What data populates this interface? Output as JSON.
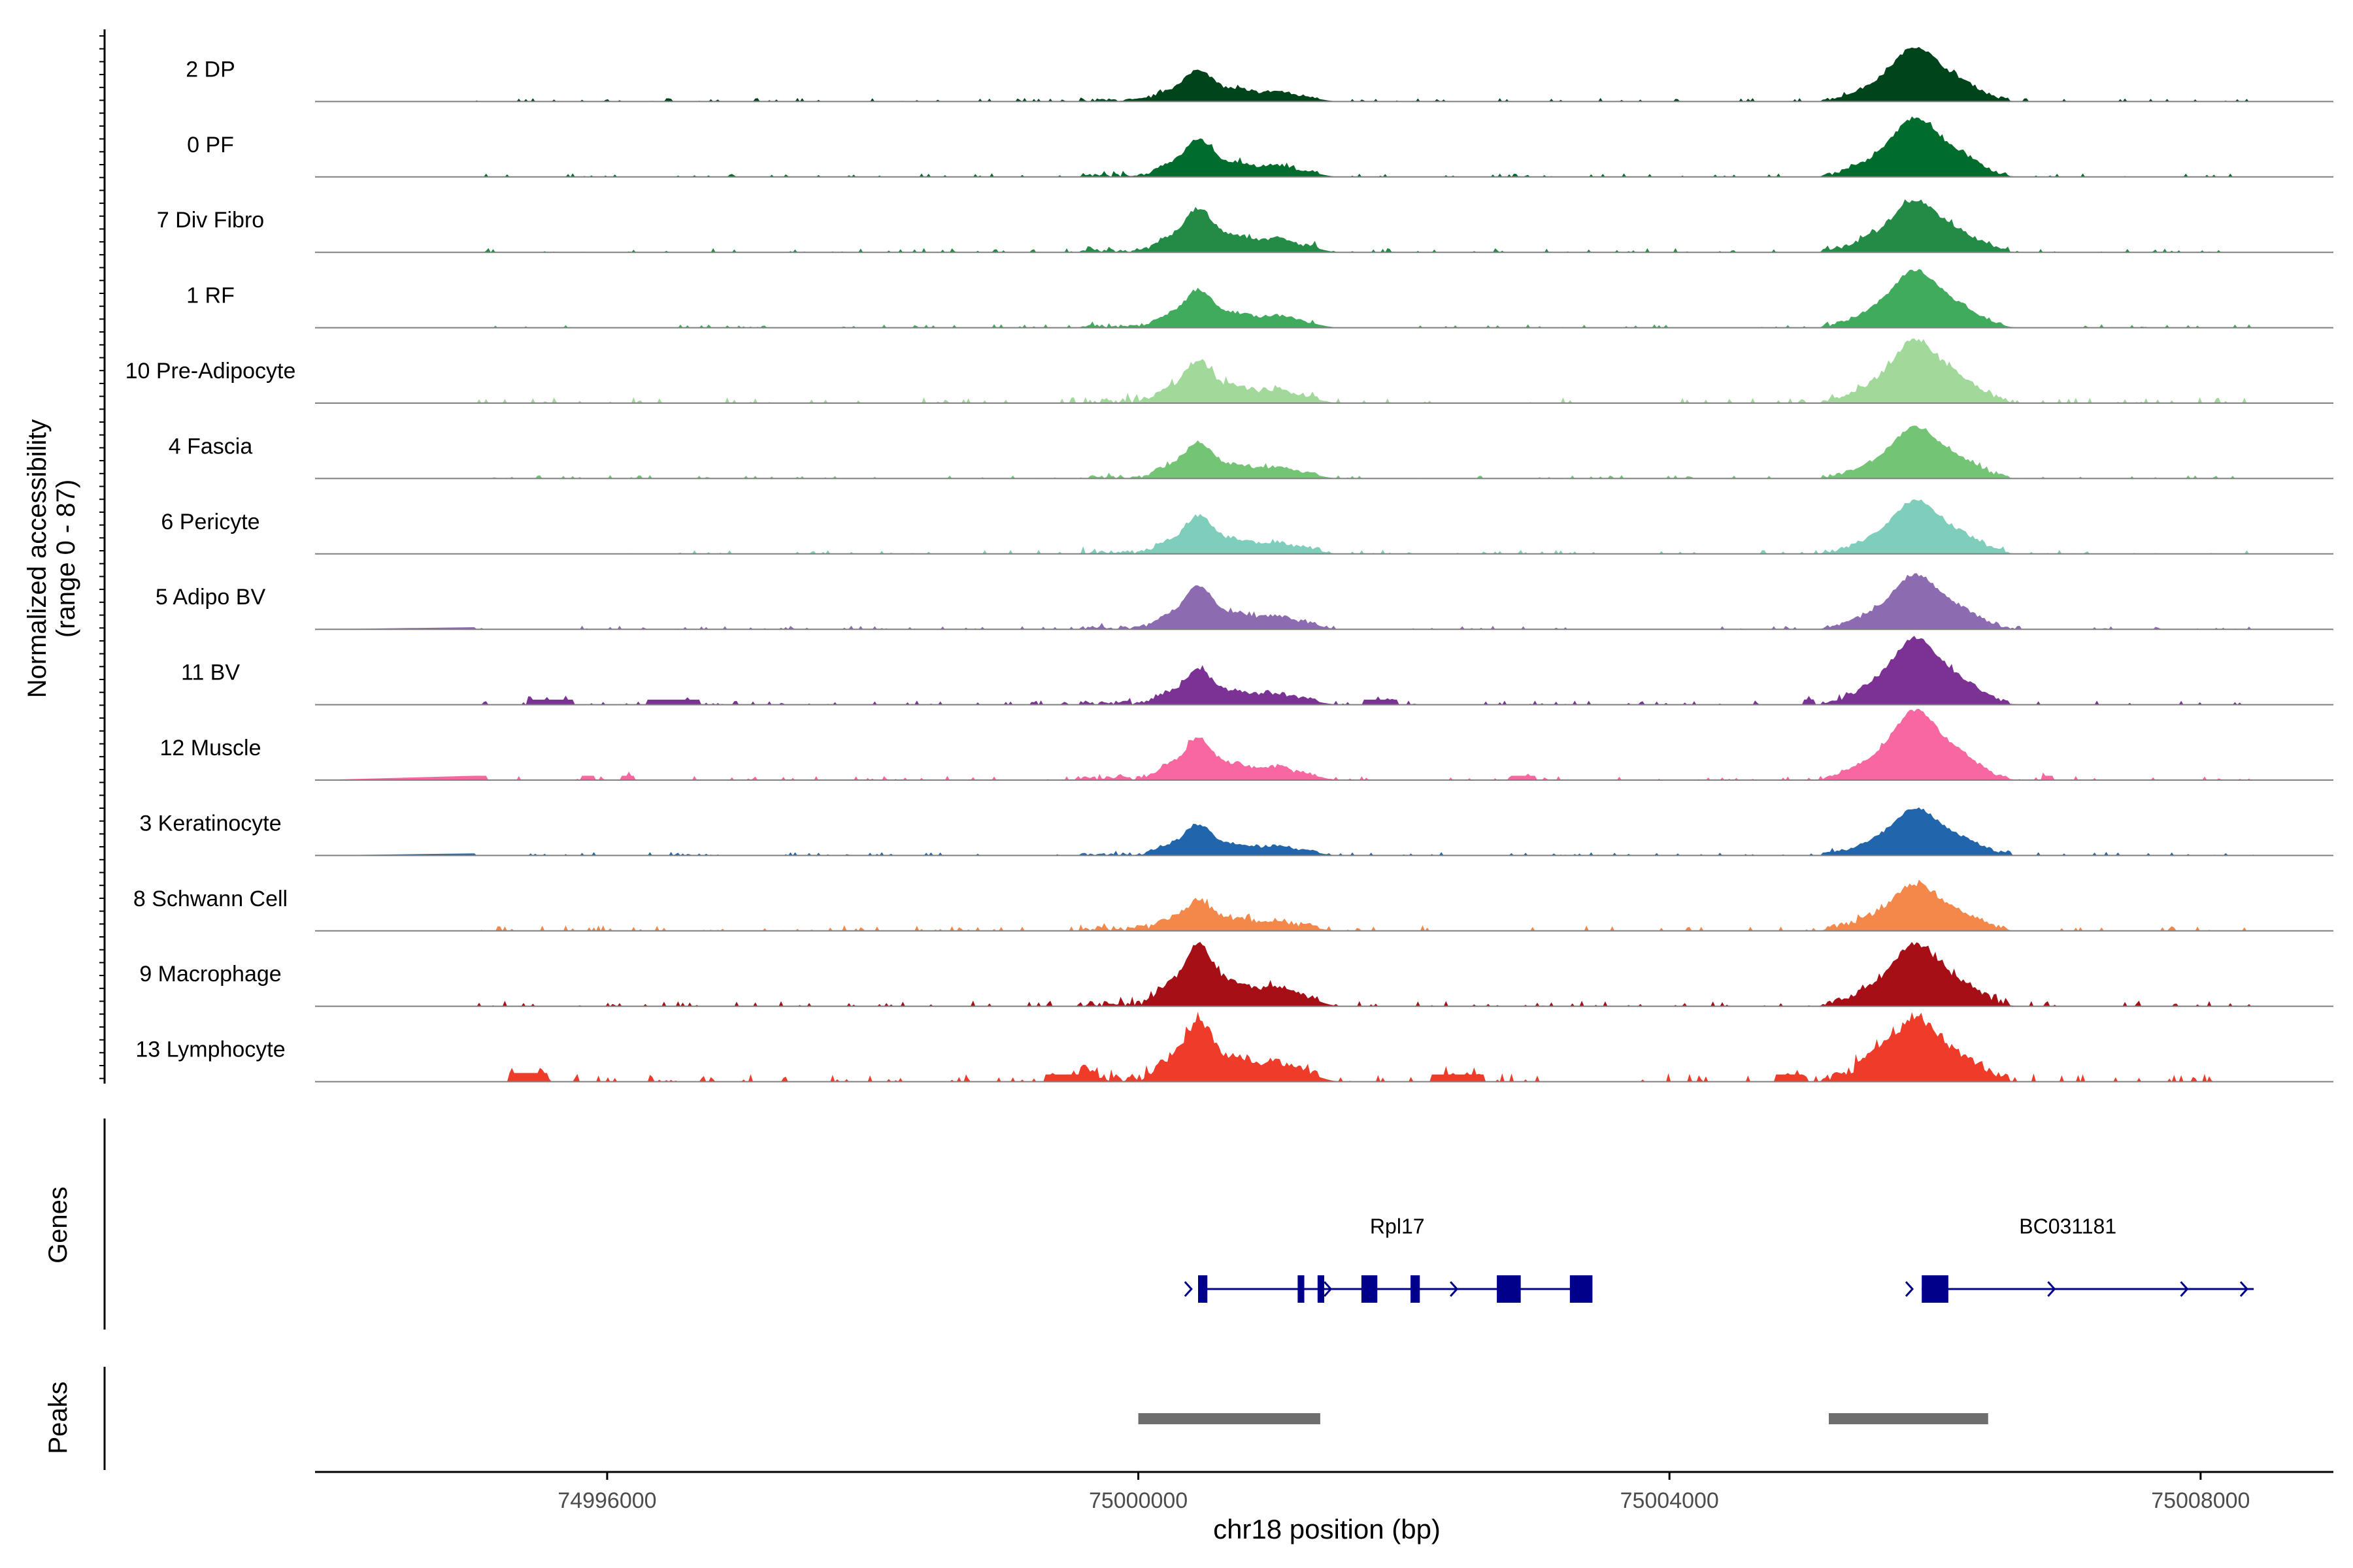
{
  "chart_data": {
    "type": "area",
    "chromosome": "chr18",
    "xlabel": "chr18 position (bp)",
    "ylabel": "Normalized accessibility",
    "ylabel_range": "(range 0 - 87)",
    "y_range": [
      0,
      87
    ],
    "x_range": [
      74993800,
      75009000
    ],
    "x_ticks": [
      74996000,
      75000000,
      75004000,
      75008000
    ],
    "x_tick_labels": [
      "74996000",
      "75000000",
      "75004000",
      "75008000"
    ],
    "grid": false,
    "panels": {
      "genes_label": "Genes",
      "peaks_label": "Peaks"
    },
    "tracks": [
      {
        "name": "2 DP",
        "color": "#00441b",
        "p1": 0.42,
        "p2": 0.72,
        "noise": 0.05,
        "extra": []
      },
      {
        "name": "0 PF",
        "color": "#006d2c",
        "p1": 0.5,
        "p2": 0.78,
        "noise": 0.05,
        "extra": []
      },
      {
        "name": "7 Div Fibro",
        "color": "#238b45",
        "p1": 0.58,
        "p2": 0.68,
        "noise": 0.06,
        "extra": []
      },
      {
        "name": "1 RF",
        "color": "#41ab5d",
        "p1": 0.5,
        "p2": 0.76,
        "noise": 0.05,
        "extra": []
      },
      {
        "name": "10 Pre-Adipocyte",
        "color": "#a1d99b",
        "p1": 0.55,
        "p2": 0.82,
        "noise": 0.08,
        "extra": []
      },
      {
        "name": "4 Fascia",
        "color": "#74c476",
        "p1": 0.48,
        "p2": 0.68,
        "noise": 0.05,
        "extra": []
      },
      {
        "name": "6 Pericyte",
        "color": "#7fcdbb",
        "p1": 0.5,
        "p2": 0.7,
        "noise": 0.06,
        "extra": []
      },
      {
        "name": "5 Adipo BV",
        "color": "#8c6bb1",
        "p1": 0.58,
        "p2": 0.72,
        "noise": 0.05,
        "extra": []
      },
      {
        "name": "11 BV",
        "color": "#7b3294",
        "p1": 0.45,
        "p2": 0.88,
        "noise": 0.06,
        "extra": [
          [
            74995400,
            74995750,
            0.07
          ],
          [
            74996300,
            74996700,
            0.07
          ],
          [
            75005000,
            75005100,
            0.07
          ],
          [
            75001700,
            75001950,
            0.07
          ]
        ]
      },
      {
        "name": "12 Muscle",
        "color": "#f768a1",
        "p1": 0.55,
        "p2": 0.92,
        "noise": 0.06,
        "extra": [
          [
            74994600,
            74994700,
            0.06
          ],
          [
            74995000,
            74995100,
            0.06
          ],
          [
            74995800,
            74995900,
            0.06
          ],
          [
            74996100,
            74996200,
            0.06
          ],
          [
            75002800,
            75003000,
            0.06
          ],
          [
            75006800,
            75006900,
            0.06
          ]
        ]
      },
      {
        "name": "3 Keratinocyte",
        "color": "#2166ac",
        "p1": 0.4,
        "p2": 0.62,
        "noise": 0.05,
        "extra": []
      },
      {
        "name": "8 Schwann Cell",
        "color": "#f4874a",
        "p1": 0.38,
        "p2": 0.6,
        "noise": 0.08,
        "extra": []
      },
      {
        "name": "9 Macrophage",
        "color": "#a50f15",
        "p1": 0.82,
        "p2": 0.8,
        "noise": 0.08,
        "extra": []
      },
      {
        "name": "13 Lymphocyte",
        "color": "#ee3b2a",
        "p1": 0.78,
        "p2": 0.8,
        "noise": 0.12,
        "extra": [
          [
            74995250,
            74995550,
            0.12
          ],
          [
            74999300,
            74999700,
            0.1
          ],
          [
            75002200,
            75002600,
            0.1
          ],
          [
            75004800,
            75005000,
            0.1
          ],
          [
            75005400,
            75005700,
            0.1
          ]
        ]
      }
    ],
    "genes": [
      {
        "name": "Rpl17",
        "start": 75000450,
        "end": 75003400,
        "label_pos": 75001950,
        "exons": [
          [
            75000450,
            75000520
          ],
          [
            75001200,
            75001250
          ],
          [
            75001350,
            75001400
          ],
          [
            75001680,
            75001800
          ],
          [
            75002050,
            75002120
          ],
          [
            75002700,
            75002880
          ],
          [
            75003250,
            75003420
          ]
        ],
        "arrows": [
          75000400,
          75001450,
          75002400
        ]
      },
      {
        "name": "BC031181",
        "start": 75005900,
        "end": 75008400,
        "label_pos": 75007000,
        "exons": [
          [
            75005900,
            75006100
          ]
        ],
        "arrows": [
          75005830,
          75006900,
          75007900,
          75008350
        ]
      }
    ],
    "peaks": [
      {
        "start": 75000000,
        "end": 75001370
      },
      {
        "start": 75005200,
        "end": 75006400
      }
    ]
  }
}
